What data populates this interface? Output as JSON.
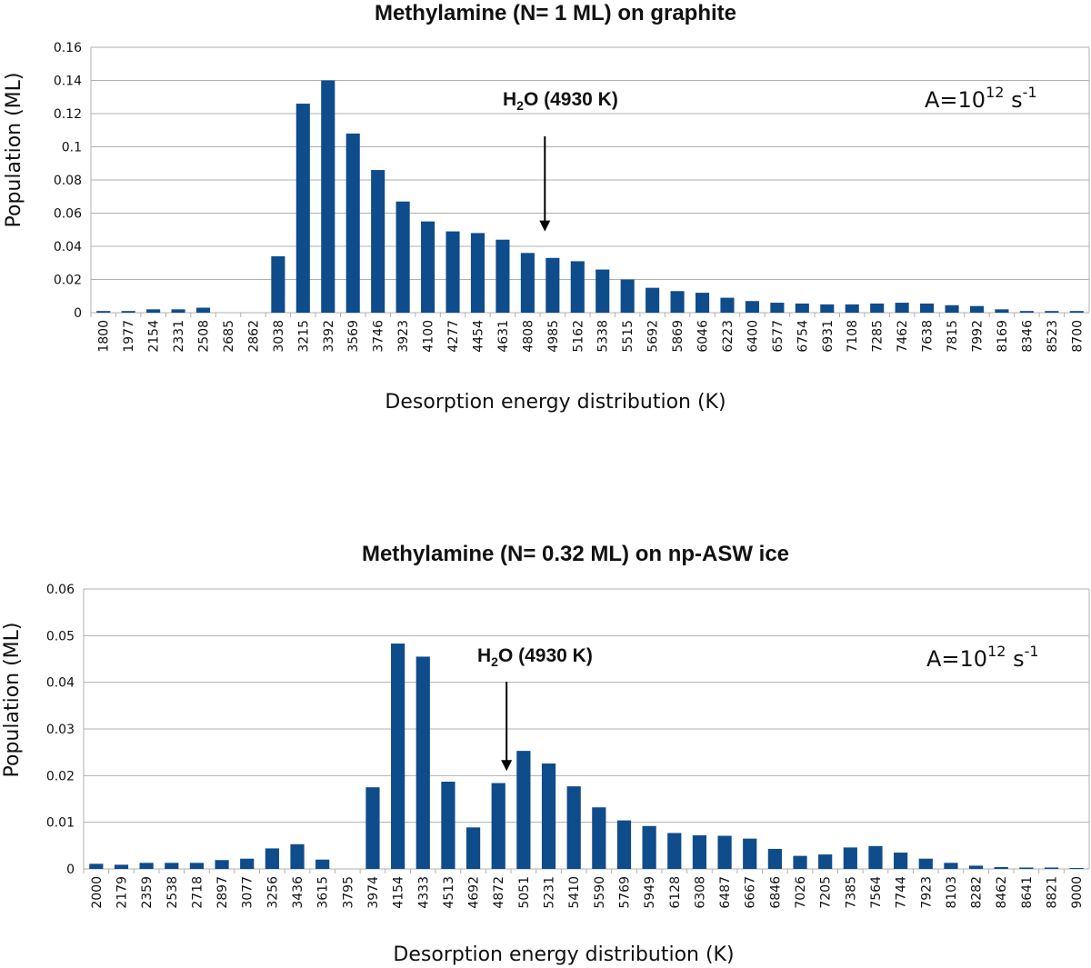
{
  "chart_data": [
    {
      "type": "bar",
      "title": "Methylamine (N= 1 ML) on graphite",
      "xlabel": "Desorption energy distribution (K)",
      "ylabel": "Population (ML)",
      "ylim": [
        0,
        0.16
      ],
      "yticks": [
        "0",
        "0.02",
        "0.04",
        "0.06",
        "0.08",
        "0.1",
        "0.12",
        "0.14",
        "0.16"
      ],
      "grid": true,
      "bar_color": "#0f4c8c",
      "categories": [
        "1800",
        "1977",
        "2154",
        "2331",
        "2508",
        "2685",
        "2862",
        "3038",
        "3215",
        "3392",
        "3569",
        "3746",
        "3923",
        "4100",
        "4277",
        "4454",
        "4631",
        "4808",
        "4985",
        "5162",
        "5338",
        "5515",
        "5692",
        "5869",
        "6046",
        "6223",
        "6400",
        "6577",
        "6754",
        "6931",
        "7108",
        "7285",
        "7462",
        "7638",
        "7815",
        "7992",
        "8169",
        "8346",
        "8523",
        "8700"
      ],
      "values": [
        0.001,
        0.001,
        0.002,
        0.002,
        0.003,
        0,
        0,
        0.034,
        0.126,
        0.14,
        0.108,
        0.086,
        0.067,
        0.055,
        0.049,
        0.048,
        0.044,
        0.036,
        0.033,
        0.031,
        0.026,
        0.02,
        0.015,
        0.013,
        0.012,
        0.009,
        0.007,
        0.006,
        0.0055,
        0.005,
        0.005,
        0.0055,
        0.006,
        0.0055,
        0.0045,
        0.004,
        0.002,
        0.001,
        0.001,
        0.001
      ],
      "annotation": {
        "label_pre": "H",
        "label_sub": "2",
        "label_post": "O (4930 K)",
        "x_value": 4930,
        "arrow_tip_value": 0.049
      },
      "rate_label": {
        "pre": "A=10",
        "sup1": "12",
        "mid": " s",
        "sup2": "-1"
      }
    },
    {
      "type": "bar",
      "title": "Methylamine (N= 0.32 ML) on np-ASW ice",
      "xlabel": "Desorption energy distribution (K)",
      "ylabel": "Population (ML)",
      "ylim": [
        0,
        0.06
      ],
      "yticks": [
        "0",
        "0.01",
        "0.02",
        "0.03",
        "0.04",
        "0.05",
        "0.06"
      ],
      "grid": true,
      "bar_color": "#0f4c8c",
      "categories": [
        "2000",
        "2179",
        "2359",
        "2538",
        "2718",
        "2897",
        "3077",
        "3256",
        "3436",
        "3615",
        "3795",
        "3974",
        "4154",
        "4333",
        "4513",
        "4692",
        "4872",
        "5051",
        "5231",
        "5410",
        "5590",
        "5769",
        "5949",
        "6128",
        "6308",
        "6487",
        "6667",
        "6846",
        "7026",
        "7205",
        "7385",
        "7564",
        "7744",
        "7923",
        "8103",
        "8282",
        "8462",
        "8641",
        "8821",
        "9000"
      ],
      "values": [
        0.0011,
        0.0009,
        0.0013,
        0.0013,
        0.0013,
        0.0019,
        0.0022,
        0.0044,
        0.0053,
        0.002,
        0,
        0.0175,
        0.0483,
        0.0455,
        0.0187,
        0.0089,
        0.0184,
        0.0253,
        0.0226,
        0.0177,
        0.0132,
        0.0104,
        0.0092,
        0.0077,
        0.0072,
        0.0071,
        0.0065,
        0.0043,
        0.0028,
        0.0031,
        0.0046,
        0.0049,
        0.0035,
        0.0022,
        0.0013,
        0.0007,
        0.0004,
        0.0003,
        0.0003,
        0.0002
      ],
      "annotation": {
        "label_pre": "H",
        "label_sub": "2",
        "label_post": "O (4930 K)",
        "x_value": 4930,
        "arrow_tip_value": 0.021
      },
      "rate_label": {
        "pre": "A=10",
        "sup1": "12",
        "mid": " s",
        "sup2": "-1"
      }
    }
  ]
}
